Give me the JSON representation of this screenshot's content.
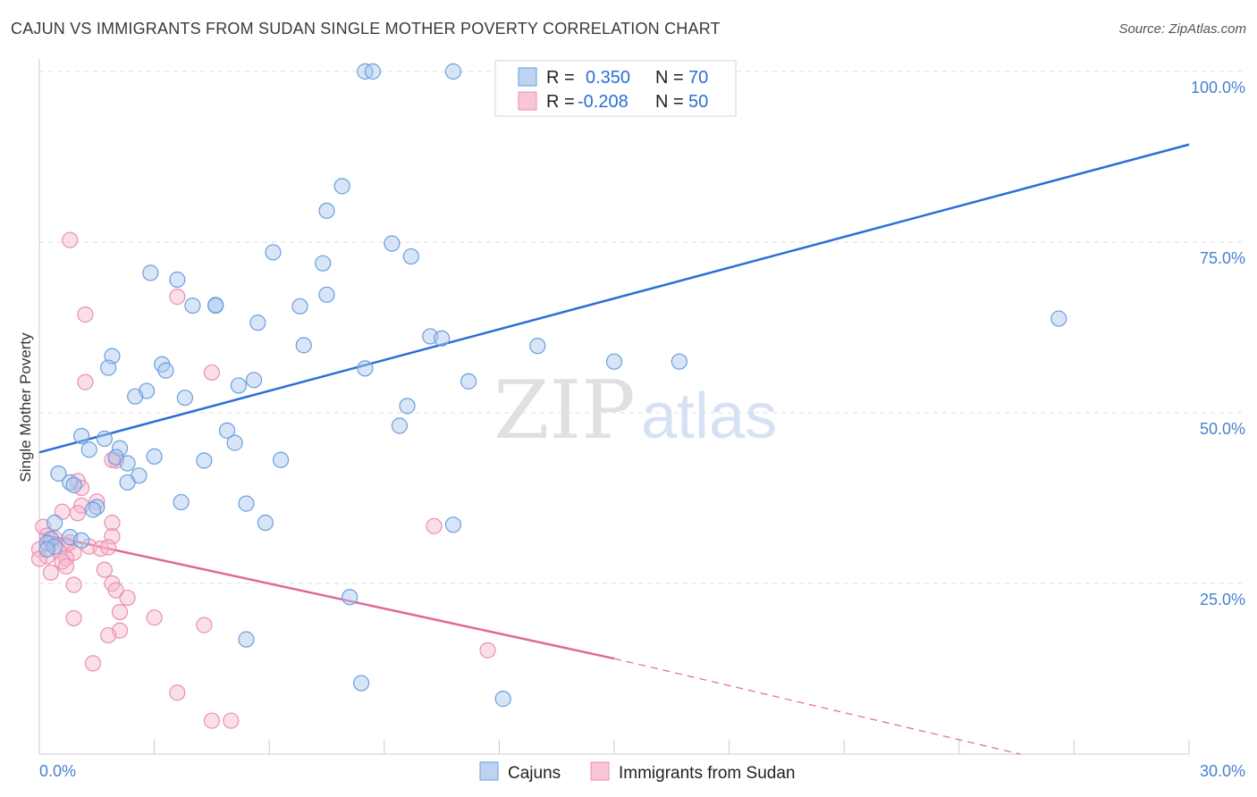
{
  "title": "CAJUN VS IMMIGRANTS FROM SUDAN SINGLE MOTHER POVERTY CORRELATION CHART",
  "source": "Source: ZipAtlas.com",
  "watermark": {
    "zip": "ZIP",
    "atlas": "atlas"
  },
  "colors": {
    "blue": "#2a6fd6",
    "blue_fill": "#a8c6ee",
    "blue_stroke": "#6a9ee0",
    "pink": "#e0679a",
    "pink_fill": "#f4b6cc",
    "pink_stroke": "#ec8fb2",
    "grid": "#dddddd",
    "label": "#4a7fcf"
  },
  "legend": {
    "rows": [
      {
        "r_label": "R =",
        "r_value": "0.350",
        "n_label": "N =",
        "n_value": "70"
      },
      {
        "r_label": "R =",
        "r_value": "-0.208",
        "n_label": "N =",
        "n_value": "50"
      }
    ]
  },
  "bottom_legend": [
    "Cajuns",
    "Immigrants from Sudan"
  ],
  "chart_data": {
    "type": "scatter",
    "title": "CAJUN VS IMMIGRANTS FROM SUDAN SINGLE MOTHER POVERTY CORRELATION CHART",
    "ylabel": "Single Mother Poverty",
    "xlabel": "",
    "xlim": [
      0,
      30
    ],
    "ylim": [
      0,
      100
    ],
    "x_tick_labels": [
      "0.0%",
      "30.0%"
    ],
    "y_tick_labels": [
      "100.0%",
      "75.0%",
      "50.0%",
      "25.0%"
    ],
    "y_ticks": [
      100,
      75,
      50,
      25
    ],
    "series": [
      {
        "name": "Cajuns",
        "R": 0.35,
        "N": 70,
        "trend": {
          "x0": 0,
          "y0": 44.2,
          "x1": 30,
          "y1": 89.3
        },
        "points": [
          [
            8.5,
            100
          ],
          [
            8.7,
            100
          ],
          [
            10.8,
            100
          ],
          [
            7.9,
            83.2
          ],
          [
            7.5,
            79.6
          ],
          [
            9.2,
            74.8
          ],
          [
            6.1,
            73.5
          ],
          [
            9.7,
            72.9
          ],
          [
            7.4,
            71.9
          ],
          [
            2.9,
            70.5
          ],
          [
            3.6,
            69.5
          ],
          [
            7.5,
            67.3
          ],
          [
            4.6,
            65.8
          ],
          [
            4.6,
            65.7
          ],
          [
            4.0,
            65.7
          ],
          [
            6.8,
            65.6
          ],
          [
            5.7,
            63.2
          ],
          [
            26.6,
            63.8
          ],
          [
            10.2,
            61.2
          ],
          [
            10.5,
            60.9
          ],
          [
            6.9,
            59.9
          ],
          [
            13.0,
            59.8
          ],
          [
            1.9,
            58.3
          ],
          [
            15.0,
            57.5
          ],
          [
            16.7,
            57.5
          ],
          [
            1.8,
            56.6
          ],
          [
            3.2,
            57.1
          ],
          [
            3.3,
            56.2
          ],
          [
            8.5,
            56.5
          ],
          [
            11.2,
            54.6
          ],
          [
            5.6,
            54.8
          ],
          [
            5.2,
            54.0
          ],
          [
            2.8,
            53.2
          ],
          [
            2.5,
            52.4
          ],
          [
            3.8,
            52.2
          ],
          [
            9.6,
            51.0
          ],
          [
            9.4,
            48.1
          ],
          [
            4.9,
            47.4
          ],
          [
            1.1,
            46.6
          ],
          [
            1.7,
            46.2
          ],
          [
            5.1,
            45.6
          ],
          [
            2.1,
            44.8
          ],
          [
            1.3,
            44.6
          ],
          [
            3.0,
            43.6
          ],
          [
            2.0,
            43.5
          ],
          [
            6.3,
            43.1
          ],
          [
            4.3,
            43.0
          ],
          [
            2.3,
            42.6
          ],
          [
            0.5,
            41.1
          ],
          [
            2.6,
            40.8
          ],
          [
            2.3,
            39.8
          ],
          [
            0.8,
            39.8
          ],
          [
            0.9,
            39.4
          ],
          [
            3.7,
            36.9
          ],
          [
            5.4,
            36.7
          ],
          [
            1.5,
            36.2
          ],
          [
            1.4,
            35.8
          ],
          [
            0.4,
            33.9
          ],
          [
            5.9,
            33.9
          ],
          [
            10.8,
            33.6
          ],
          [
            0.8,
            31.8
          ],
          [
            0.3,
            31.5
          ],
          [
            1.1,
            31.3
          ],
          [
            0.2,
            30.9
          ],
          [
            0.4,
            30.4
          ],
          [
            8.1,
            23.0
          ],
          [
            5.4,
            16.8
          ],
          [
            8.4,
            10.4
          ],
          [
            12.1,
            8.1
          ],
          [
            0.2,
            30.0
          ]
        ]
      },
      {
        "name": "Immigrants from Sudan",
        "R": -0.208,
        "N": 50,
        "trend": {
          "x0": 0,
          "y0": 32.3,
          "x1": 15.0,
          "y1": 14.0
        },
        "trend_dashed": {
          "x0": 15.0,
          "y0": 14.0,
          "x1": 25.6,
          "y1": 0.0
        },
        "points": [
          [
            0.8,
            75.3
          ],
          [
            1.2,
            64.4
          ],
          [
            3.6,
            67.0
          ],
          [
            1.2,
            54.5
          ],
          [
            4.5,
            55.9
          ],
          [
            2.0,
            43.0
          ],
          [
            1.9,
            43.1
          ],
          [
            1.0,
            40.0
          ],
          [
            1.1,
            39.0
          ],
          [
            1.5,
            37.0
          ],
          [
            1.1,
            36.4
          ],
          [
            0.6,
            35.5
          ],
          [
            1.0,
            35.3
          ],
          [
            1.9,
            33.9
          ],
          [
            10.3,
            33.4
          ],
          [
            0.1,
            33.3
          ],
          [
            0.2,
            32.0
          ],
          [
            1.9,
            31.9
          ],
          [
            0.4,
            31.6
          ],
          [
            0.8,
            31.0
          ],
          [
            0.3,
            30.8
          ],
          [
            0.7,
            30.6
          ],
          [
            1.3,
            30.4
          ],
          [
            1.6,
            30.1
          ],
          [
            1.8,
            30.3
          ],
          [
            0.0,
            30.0
          ],
          [
            0.5,
            29.8
          ],
          [
            0.9,
            29.5
          ],
          [
            0.2,
            29.0
          ],
          [
            0.7,
            28.7
          ],
          [
            0.6,
            28.2
          ],
          [
            0.0,
            28.6
          ],
          [
            1.7,
            27.0
          ],
          [
            0.3,
            26.6
          ],
          [
            0.7,
            27.5
          ],
          [
            1.9,
            25.0
          ],
          [
            0.9,
            24.8
          ],
          [
            2.0,
            24.0
          ],
          [
            2.3,
            22.9
          ],
          [
            2.1,
            20.8
          ],
          [
            0.9,
            19.9
          ],
          [
            3.0,
            20.0
          ],
          [
            4.3,
            18.9
          ],
          [
            2.1,
            18.1
          ],
          [
            1.8,
            17.4
          ],
          [
            11.7,
            15.2
          ],
          [
            1.4,
            13.3
          ],
          [
            3.6,
            9.0
          ],
          [
            4.5,
            4.9
          ],
          [
            5.0,
            4.9
          ]
        ]
      }
    ]
  }
}
